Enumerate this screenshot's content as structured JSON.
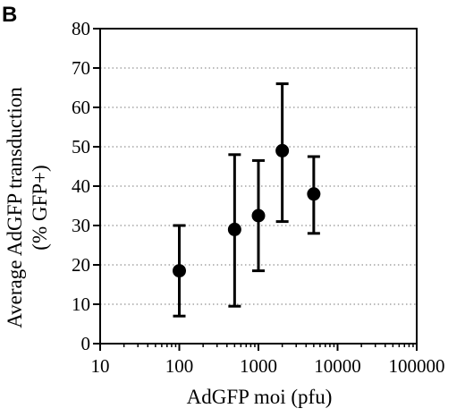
{
  "panel_label": "B",
  "chart_data": {
    "type": "scatter",
    "xlabel": "AdGFP moi (pfu)",
    "ylabel_line1": "Average AdGFP transduction",
    "ylabel_line2": "(% GFP+)",
    "x_scale": "log",
    "xlim": [
      10,
      100000
    ],
    "ylim": [
      0,
      80
    ],
    "x_ticks": [
      10,
      100,
      1000,
      10000,
      100000
    ],
    "x_tick_labels": [
      "10",
      "100",
      "1000",
      "10000",
      "100000"
    ],
    "y_ticks": [
      0,
      10,
      20,
      30,
      40,
      50,
      60,
      70,
      80
    ],
    "y_tick_labels": [
      "0",
      "10",
      "20",
      "30",
      "40",
      "50",
      "60",
      "70",
      "80"
    ],
    "grid": "horizontal-dotted",
    "points": [
      {
        "x": 100,
        "y": 18.5,
        "low": 7,
        "high": 30
      },
      {
        "x": 500,
        "y": 29,
        "low": 9.5,
        "high": 48
      },
      {
        "x": 1000,
        "y": 32.5,
        "low": 18.5,
        "high": 46.5
      },
      {
        "x": 2000,
        "y": 49,
        "low": 31,
        "high": 66
      },
      {
        "x": 5000,
        "y": 38,
        "low": 28,
        "high": 47.5
      }
    ]
  }
}
